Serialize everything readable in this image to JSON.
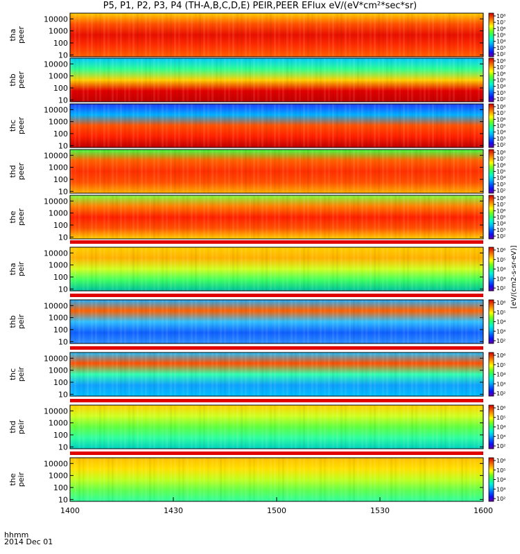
{
  "title": "P5, P1, P2, P3, P4 (TH-A,B,C,D,E) PEIR,PEER EFlux eV/(eV*cm²*sec*sr)",
  "x_caption_line1": "hhmm",
  "x_caption_line2": "2014 Dec 01",
  "colorbar_unit_label": "[eV/(cm2-s-sr-eV)]",
  "chart_data": {
    "type": "heatmap",
    "x_ticks": [
      "1400",
      "1430",
      "1500",
      "1530",
      "1600"
    ],
    "x_range": [
      "14:00",
      "16:00"
    ],
    "y_scale": "log",
    "y_ticks": [
      "10",
      "100",
      "1000",
      "10000"
    ],
    "y_range_eV": [
      7,
      30000
    ],
    "colorbar_scale": "log",
    "panels": [
      {
        "label_top": "tha",
        "label_bottom": "peer",
        "colorbar_ticks": [
          "10²",
          "10³",
          "10⁴",
          "10⁵",
          "10⁶",
          "10⁷",
          "10⁸"
        ]
      },
      {
        "label_top": "thb",
        "label_bottom": "peer",
        "colorbar_ticks": [
          "10²",
          "10³",
          "10⁴",
          "10⁵",
          "10⁶",
          "10⁷",
          "10⁸"
        ]
      },
      {
        "label_top": "thc",
        "label_bottom": "peer",
        "colorbar_ticks": [
          "10²",
          "10³",
          "10⁴",
          "10⁵",
          "10⁶",
          "10⁷",
          "10⁸"
        ]
      },
      {
        "label_top": "thd",
        "label_bottom": "peer",
        "colorbar_ticks": [
          "10²",
          "10³",
          "10⁴",
          "10⁵",
          "10⁶",
          "10⁷",
          "10⁸"
        ]
      },
      {
        "label_top": "the",
        "label_bottom": "peer",
        "colorbar_ticks": [
          "10²",
          "10³",
          "10⁴",
          "10⁵",
          "10⁶",
          "10⁷",
          "10⁸"
        ]
      },
      {
        "label_top": "tha",
        "label_bottom": "peir",
        "colorbar_ticks": [
          "10²",
          "10³",
          "10⁴",
          "10⁵",
          "10⁶"
        ]
      },
      {
        "label_top": "thb",
        "label_bottom": "peir",
        "colorbar_ticks": [
          "10²",
          "10³",
          "10⁴",
          "10⁵",
          "10⁶"
        ]
      },
      {
        "label_top": "thc",
        "label_bottom": "peir",
        "colorbar_ticks": [
          "10²",
          "10³",
          "10⁴",
          "10⁵",
          "10⁶"
        ]
      },
      {
        "label_top": "thd",
        "label_bottom": "peir",
        "colorbar_ticks": [
          "10²",
          "10³",
          "10⁴",
          "10⁵",
          "10⁶"
        ]
      },
      {
        "label_top": "the",
        "label_bottom": "peir",
        "colorbar_ticks": [
          "10²",
          "10³",
          "10⁴",
          "10⁵",
          "10⁶"
        ]
      }
    ]
  }
}
